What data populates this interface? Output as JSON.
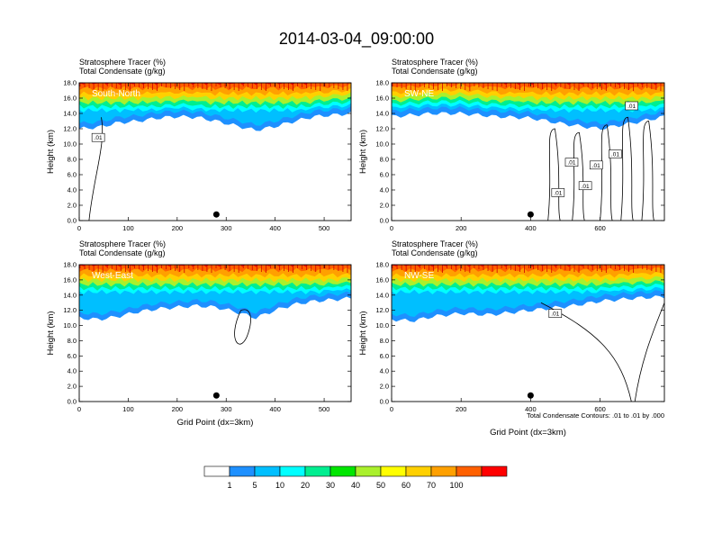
{
  "figure": {
    "title": "2014-03-04_09:00:00",
    "footnote": "Total Condensate Contours: .01 to .01 by .000"
  },
  "colorbar": {
    "colors": [
      "#ffffff",
      "#1e90ff",
      "#00bfff",
      "#00ffff",
      "#00ee90",
      "#00e600",
      "#aaf02c",
      "#ffff00",
      "#ffd000",
      "#ffa000",
      "#ff6000",
      "#ff0000"
    ],
    "labels": [
      "1",
      "5",
      "10",
      "20",
      "30",
      "40",
      "50",
      "60",
      "70",
      "100"
    ]
  },
  "chart_data": [
    {
      "type": "heatmap",
      "panel_label": "South-North",
      "header_line1": "Stratosphere Tracer   (%)",
      "header_line2": "Total Condensate   (g/kg)",
      "ylabel": "Height (km)",
      "xlabel": "",
      "xlim": [
        0,
        555
      ],
      "xticks": [
        "0",
        "100",
        "200",
        "300",
        "400",
        "500"
      ],
      "ylim": [
        0,
        18
      ],
      "yticks": [
        "0.0",
        "2.0",
        "4.0",
        "6.0",
        "8.0",
        "10.0",
        "12.0",
        "14.0",
        "16.0",
        "18.0"
      ],
      "contour_labels": [
        ".01"
      ],
      "tracer_profile": {
        "x": [
          0,
          40,
          80,
          120,
          160,
          200,
          240,
          280,
          320,
          360,
          400,
          440,
          480,
          520,
          555
        ],
        "ztop_blue_km": [
          12.0,
          12.2,
          12.8,
          13.0,
          13.4,
          13.6,
          13.5,
          13.0,
          12.4,
          11.8,
          12.3,
          13.0,
          13.6,
          13.8,
          14.0
        ]
      }
    },
    {
      "type": "heatmap",
      "panel_label": "SW-NE",
      "header_line1": "Stratosphere Tracer   (%)",
      "header_line2": "Total Condensate   (g/kg)",
      "ylabel": "Height (km)",
      "xlabel": "",
      "xlim": [
        0,
        785
      ],
      "xticks": [
        "0",
        "200",
        "400",
        "600"
      ],
      "ylim": [
        0,
        18
      ],
      "yticks": [
        "0.0",
        "2.0",
        "4.0",
        "6.0",
        "8.0",
        "10.0",
        "12.0",
        "14.0",
        "16.0",
        "18.0"
      ],
      "contour_labels": [
        ".01",
        ".01",
        ".01",
        ".01",
        ".01",
        ".01"
      ],
      "tracer_profile": {
        "x": [
          0,
          60,
          120,
          200,
          300,
          400,
          500,
          600,
          700,
          785
        ],
        "ztop_blue_km": [
          13.6,
          13.8,
          14.0,
          14.0,
          13.6,
          13.4,
          12.6,
          12.0,
          12.8,
          13.6
        ]
      }
    },
    {
      "type": "heatmap",
      "panel_label": "West-East",
      "header_line1": "Stratosphere Tracer   (%)",
      "header_line2": "Total Condensate   (g/kg)",
      "ylabel": "Height (km)",
      "xlabel": "Grid Point (dx=3km)",
      "xlim": [
        0,
        555
      ],
      "xticks": [
        "0",
        "100",
        "200",
        "300",
        "400",
        "500"
      ],
      "ylim": [
        0,
        18
      ],
      "yticks": [
        "0.0",
        "2.0",
        "4.0",
        "6.0",
        "8.0",
        "10.0",
        "12.0",
        "14.0",
        "16.0",
        "18.0"
      ],
      "contour_labels": [],
      "tracer_profile": {
        "x": [
          0,
          40,
          80,
          120,
          160,
          200,
          240,
          280,
          320,
          360,
          400,
          440,
          480,
          520,
          555
        ],
        "ztop_blue_km": [
          11.0,
          10.8,
          11.2,
          11.8,
          12.2,
          12.4,
          12.6,
          12.4,
          11.8,
          11.0,
          12.0,
          12.8,
          13.2,
          13.4,
          13.6
        ]
      }
    },
    {
      "type": "heatmap",
      "panel_label": "NW-SE",
      "header_line1": "Stratosphere Tracer   (%)",
      "header_line2": "Total Condensate   (g/kg)",
      "ylabel": "Height (km)",
      "xlabel": "Grid Point (dx=3km)",
      "xlim": [
        0,
        785
      ],
      "xticks": [
        "0",
        "200",
        "400",
        "600"
      ],
      "ylim": [
        0,
        18
      ],
      "yticks": [
        "0.0",
        "2.0",
        "4.0",
        "6.0",
        "8.0",
        "10.0",
        "12.0",
        "14.0",
        "16.0",
        "18.0"
      ],
      "contour_labels": [
        ".01"
      ],
      "tracer_profile": {
        "x": [
          0,
          60,
          120,
          200,
          280,
          360,
          440,
          520,
          600,
          700,
          785
        ],
        "ztop_blue_km": [
          10.8,
          10.6,
          11.2,
          11.6,
          11.4,
          11.8,
          12.2,
          12.6,
          13.2,
          13.6,
          13.8
        ]
      }
    }
  ]
}
